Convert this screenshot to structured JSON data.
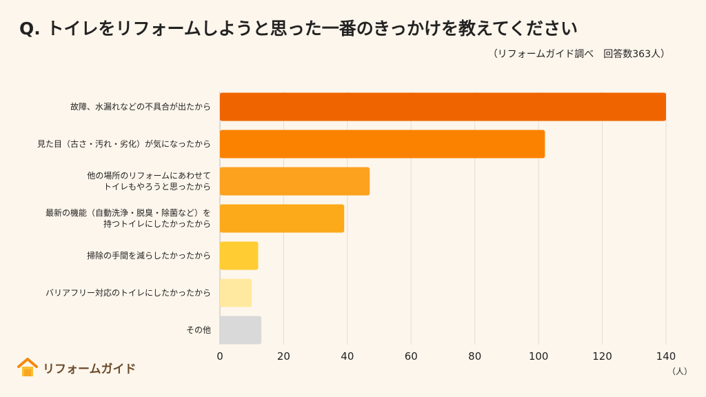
{
  "title": "Q. トイレをリフォームしようと思った一番のきっかけを教えてください",
  "subtitle": "（リフォームガイド調べ　回答数363人）",
  "logo_text": "リフォームガイド",
  "chart_data": {
    "type": "bar",
    "orientation": "horizontal",
    "categories": [
      [
        "故障、水漏れなどの不具合が出たから"
      ],
      [
        "見た目（古さ・汚れ・劣化）が気になったから"
      ],
      [
        "他の場所のリフォームにあわせて",
        "トイレもやろうと思ったから"
      ],
      [
        "最新の機能（自動洗浄・脱臭・除菌など）を",
        "持つトイレにしたかったから"
      ],
      [
        "掃除の手間を減らしたかったから"
      ],
      [
        "バリアフリー対応のトイレにしたかったから"
      ],
      [
        "その他"
      ]
    ],
    "values": [
      140,
      102,
      47,
      39,
      12,
      10,
      13
    ],
    "colors": [
      "#f06400",
      "#fb8200",
      "#fca21e",
      "#fca91a",
      "#ffcd33",
      "#ffe9a0",
      "#d9d9d9"
    ],
    "xlim": [
      0,
      140
    ],
    "xticks": [
      0,
      20,
      40,
      60,
      80,
      100,
      120,
      140
    ],
    "xlabel": "（人）",
    "grid": true
  }
}
